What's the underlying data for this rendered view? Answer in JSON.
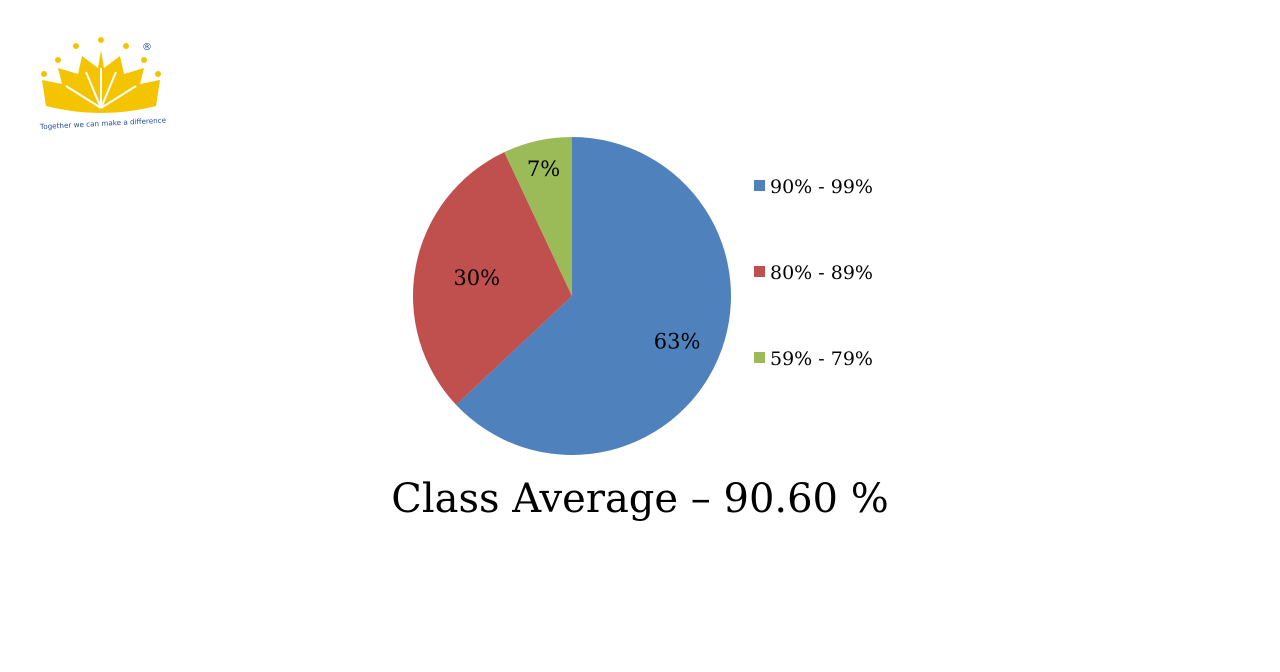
{
  "logo": {
    "tagline": "Together we can make a difference",
    "mark": "®",
    "color": "#F5C400",
    "text_color": "#1F4E9C"
  },
  "chart_data": {
    "type": "pie",
    "slices": [
      {
        "label": "90% - 99%",
        "value": 63,
        "display": "63%",
        "color": "#4F81BD"
      },
      {
        "label": "80% - 89%",
        "value": 30,
        "display": "30%",
        "color": "#C0504D"
      },
      {
        "label": "59% - 79%",
        "value": 7,
        "display": "7%",
        "color": "#9BBB59"
      }
    ],
    "legend_position": "right",
    "start": "12 o'clock",
    "direction": "clockwise"
  },
  "caption": "Class Average – 90.60 %"
}
